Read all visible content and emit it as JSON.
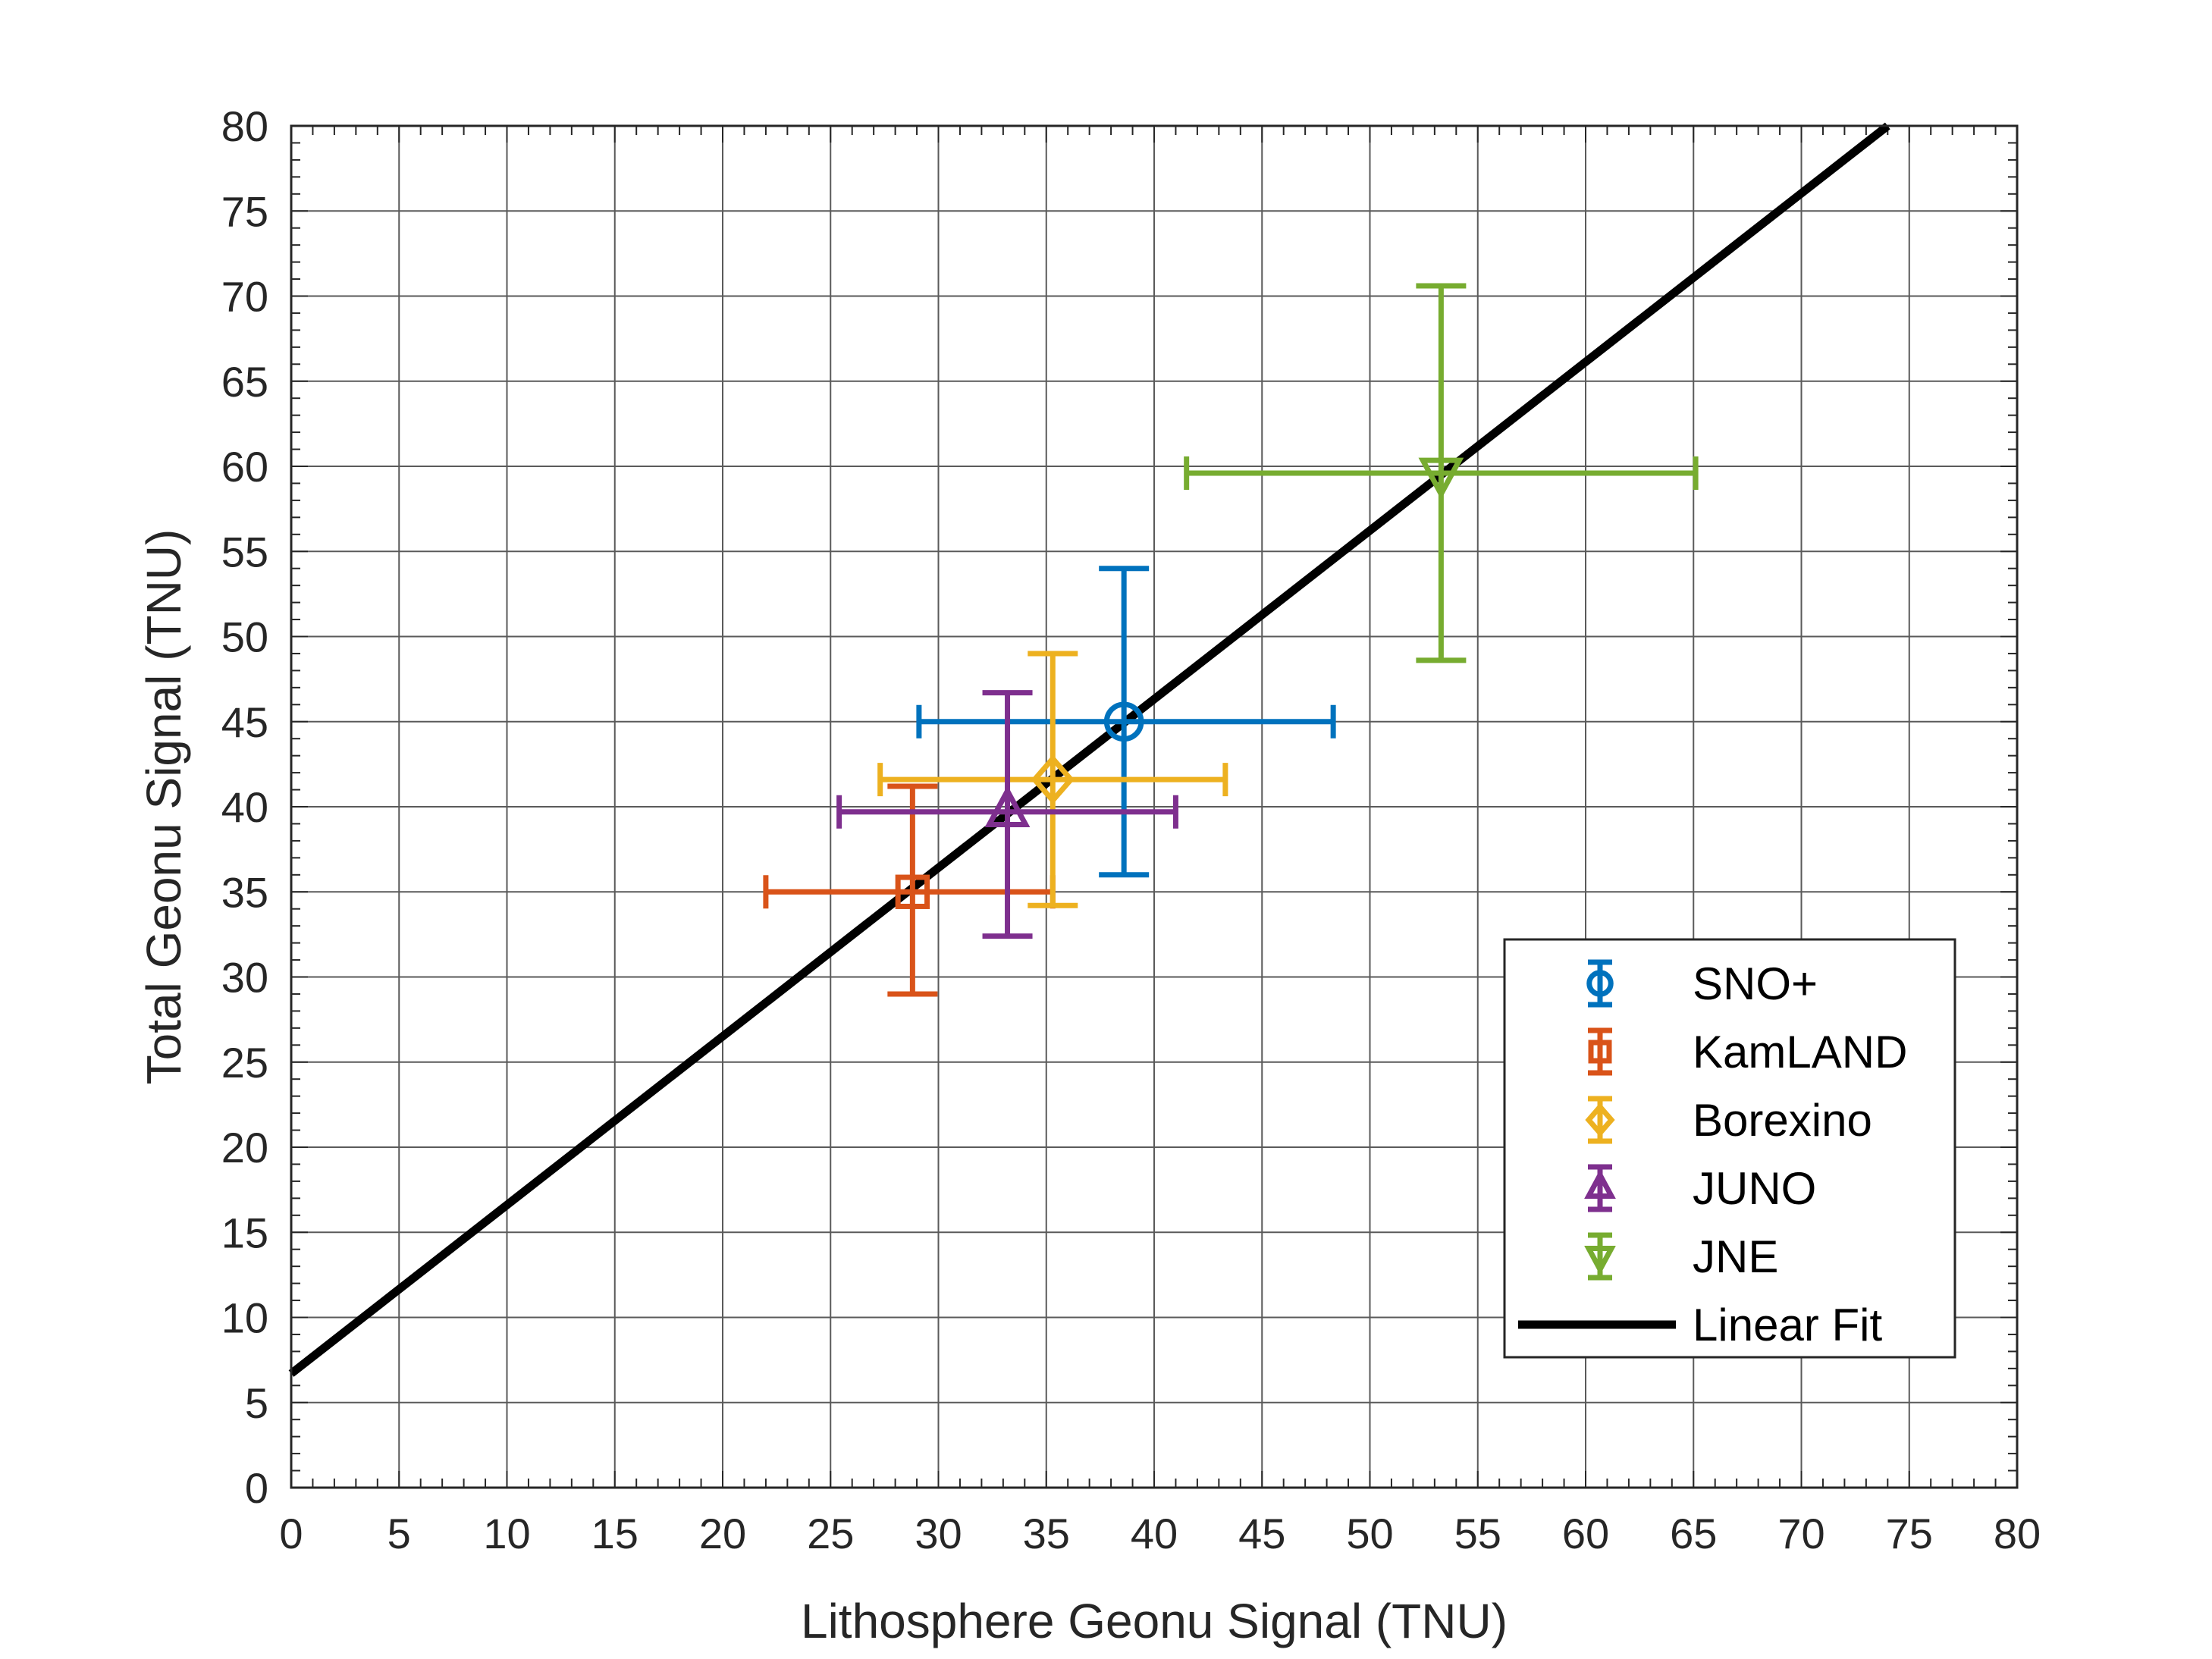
{
  "chart_data": {
    "type": "scatter",
    "xlabel": "Lithosphere Geonu Signal (TNU)",
    "ylabel": "Total Geonu Signal (TNU)",
    "xlim": [
      0,
      80
    ],
    "ylim": [
      0,
      80
    ],
    "xticks": [
      "0",
      "5",
      "10",
      "15",
      "20",
      "25",
      "30",
      "35",
      "40",
      "45",
      "50",
      "55",
      "60",
      "65",
      "70",
      "75",
      "80"
    ],
    "yticks": [
      "0",
      "5",
      "10",
      "15",
      "20",
      "25",
      "30",
      "35",
      "40",
      "45",
      "50",
      "55",
      "60",
      "65",
      "70",
      "75",
      "80"
    ],
    "grid": true,
    "legend_position": "bottom-right",
    "series": [
      {
        "name": "SNO+",
        "marker": "circle",
        "color": "#0072BD",
        "x": 38.6,
        "y": 45.0,
        "x_err": [
          9.5,
          9.7
        ],
        "y_err": [
          9.0,
          9.0
        ]
      },
      {
        "name": "KamLAND",
        "marker": "square",
        "color": "#D95319",
        "x": 28.8,
        "y": 35.0,
        "x_err": [
          6.8,
          6.5
        ],
        "y_err": [
          6.0,
          6.2
        ]
      },
      {
        "name": "Borexino",
        "marker": "diamond",
        "color": "#EDB120",
        "x": 35.3,
        "y": 41.6,
        "x_err": [
          8.0,
          8.0
        ],
        "y_err": [
          7.4,
          7.4
        ]
      },
      {
        "name": "JUNO",
        "marker": "triangle-up",
        "color": "#7E2F8E",
        "x": 33.2,
        "y": 39.7,
        "x_err": [
          7.8,
          7.8
        ],
        "y_err": [
          7.3,
          7.0
        ]
      },
      {
        "name": "JNE",
        "marker": "triangle-down",
        "color": "#77AC30",
        "x": 53.3,
        "y": 59.6,
        "x_err": [
          11.8,
          11.8
        ],
        "y_err": [
          11.0,
          11.0
        ]
      }
    ],
    "fit": {
      "name": "Linear Fit",
      "color": "#000000",
      "x": [
        0,
        74
      ],
      "y": [
        6.7,
        80
      ]
    }
  }
}
